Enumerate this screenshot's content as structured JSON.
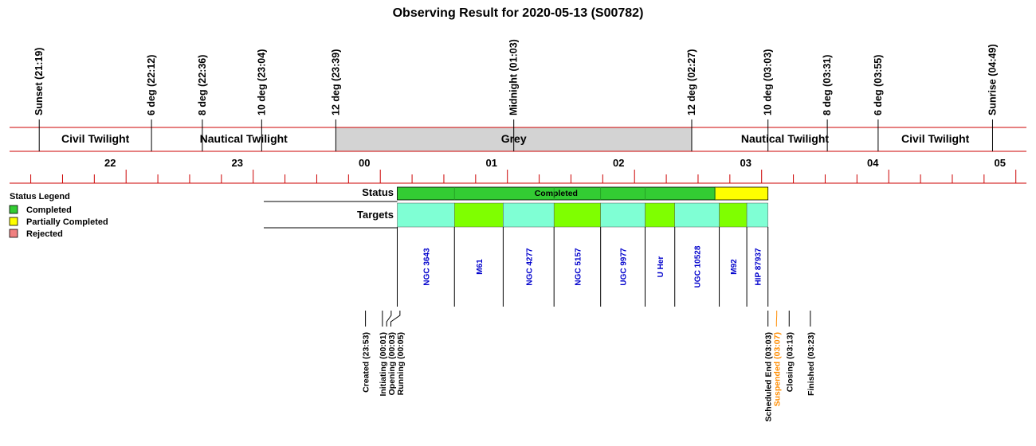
{
  "chart_data": {
    "type": "timeline",
    "title": "Observing Result for 2020-05-13 (S00782)",
    "time_axis": {
      "start": "21:05",
      "end": "05:05",
      "tick_labels": [
        "22",
        "23",
        "00",
        "01",
        "02",
        "03",
        "04",
        "05"
      ],
      "minor_tick_minutes": 15
    },
    "sky_events": [
      {
        "label": "Sunset (21:19)",
        "time": "21:19"
      },
      {
        "label": "6 deg (22:12)",
        "time": "22:12"
      },
      {
        "label": "8 deg (22:36)",
        "time": "22:36"
      },
      {
        "label": "10 deg (23:04)",
        "time": "23:04"
      },
      {
        "label": "12 deg (23:39)",
        "time": "23:39"
      },
      {
        "label": "Midnight (01:03)",
        "time": "01:03"
      },
      {
        "label": "12 deg (02:27)",
        "time": "02:27"
      },
      {
        "label": "10 deg (03:03)",
        "time": "03:03"
      },
      {
        "label": "8 deg (03:31)",
        "time": "03:31"
      },
      {
        "label": "6 deg (03:55)",
        "time": "03:55"
      },
      {
        "label": "Sunrise (04:49)",
        "time": "04:49"
      }
    ],
    "twilight_phases": [
      {
        "label": "Civil Twilight",
        "start": "21:19",
        "end": "22:12",
        "fill": "#ffffff"
      },
      {
        "label": "Nautical Twilight",
        "start": "22:12",
        "end": "23:39",
        "fill": "#ffffff"
      },
      {
        "label": "Grey",
        "start": "23:39",
        "end": "02:27",
        "fill": "#d3d3d3"
      },
      {
        "label": "Nautical Twilight",
        "start": "02:27",
        "end": "03:55",
        "fill": "#ffffff"
      },
      {
        "label": "Civil Twilight",
        "start": "03:55",
        "end": "04:49",
        "fill": "#ffffff"
      }
    ],
    "rows": {
      "status_label": "Status",
      "targets_label": "Targets",
      "row_start": "23:05"
    },
    "status_segments": [
      {
        "label": "Completed",
        "start": "00:08",
        "end": "02:38",
        "color": "#33cc33"
      },
      {
        "label": "",
        "start": "02:38",
        "end": "03:03",
        "color": "#ffff00"
      }
    ],
    "status_dividers": [
      "00:35",
      "01:22",
      "01:44",
      "02:05",
      "02:38"
    ],
    "targets": [
      {
        "name": "NGC 3643",
        "start": "00:08",
        "end": "00:35",
        "color": "#7fffd4"
      },
      {
        "name": "M61",
        "start": "00:35",
        "end": "00:58",
        "color": "#7fff00"
      },
      {
        "name": "NGC 4277",
        "start": "00:58",
        "end": "01:22",
        "color": "#7fffd4"
      },
      {
        "name": "NGC 5157",
        "start": "01:22",
        "end": "01:44",
        "color": "#7fff00"
      },
      {
        "name": "UGC 9977",
        "start": "01:44",
        "end": "02:05",
        "color": "#7fffd4"
      },
      {
        "name": "U Her",
        "start": "02:05",
        "end": "02:19",
        "color": "#7fff00"
      },
      {
        "name": "UGC 10528",
        "start": "02:19",
        "end": "02:40",
        "color": "#7fffd4"
      },
      {
        "name": "M92",
        "start": "02:40",
        "end": "02:53",
        "color": "#7fff00"
      },
      {
        "name": "HIP 87937",
        "start": "02:53",
        "end": "03:03",
        "color": "#7fffd4"
      }
    ],
    "milestones": [
      {
        "label": "Created (23:53)",
        "time": "23:53",
        "color": "#000000"
      },
      {
        "label": "Initiating (00:01)",
        "time": "00:01",
        "color": "#000000"
      },
      {
        "label": "Opening (00:03)",
        "time": "00:03",
        "color": "#000000"
      },
      {
        "label": "Running (00:05)",
        "time": "00:05",
        "color": "#000000"
      },
      {
        "label": "Scheduled End (03:03)",
        "time": "03:03",
        "color": "#000000"
      },
      {
        "label": "Suspended (03:07)",
        "time": "03:07",
        "color": "#ff8c00"
      },
      {
        "label": "Closing (03:13)",
        "time": "03:13",
        "color": "#000000"
      },
      {
        "label": "Finished (03:23)",
        "time": "03:23",
        "color": "#000000"
      }
    ],
    "legend": {
      "title": "Status Legend",
      "placement": "left",
      "entries": [
        {
          "label": "Completed",
          "color": "#33cc33"
        },
        {
          "label": "Partially Completed",
          "color": "#ffff00"
        },
        {
          "label": "Rejected",
          "color": "#f08080"
        }
      ]
    }
  }
}
